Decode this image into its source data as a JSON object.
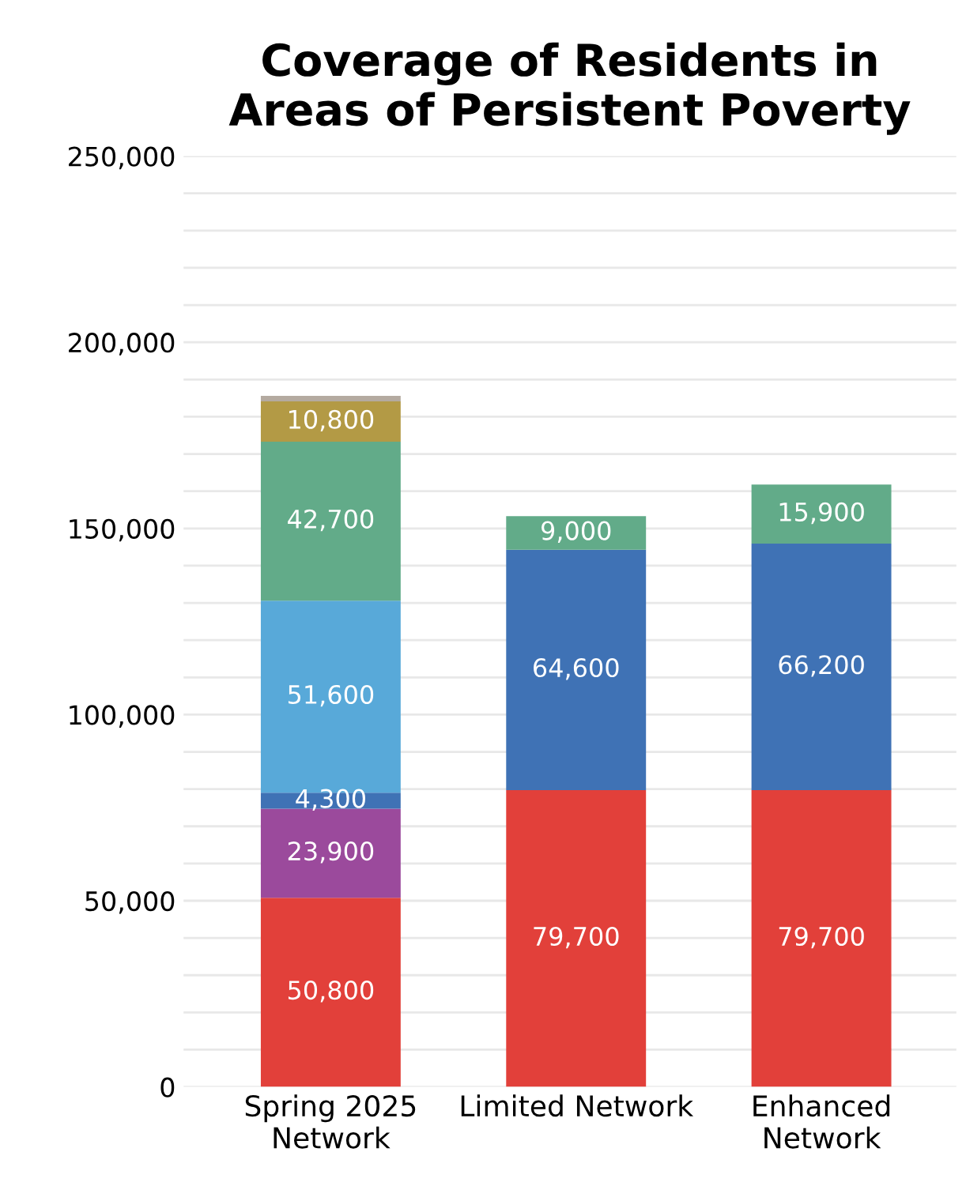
{
  "chart_data": {
    "type": "bar",
    "stacked": true,
    "title": "Coverage of Residents in\nAreas of Persistent Poverty",
    "categories": [
      "Spring 2025\nNetwork",
      "Limited Network",
      "Enhanced\nNetwork"
    ],
    "series": [
      {
        "color": "#e2403a",
        "values": [
          50800,
          79700,
          79700
        ],
        "value_labels": [
          "50,800",
          "79,700",
          "79,700"
        ]
      },
      {
        "color": "#9b4a9c",
        "values": [
          23900,
          null,
          null
        ],
        "value_labels": [
          "23,900",
          null,
          null
        ]
      },
      {
        "color": "#3f72b5",
        "values": [
          4300,
          64600,
          66200
        ],
        "value_labels": [
          "4,300",
          "64,600",
          "66,200"
        ]
      },
      {
        "color": "#58a9d9",
        "values": [
          51600,
          null,
          null
        ],
        "value_labels": [
          "51,600",
          null,
          null
        ]
      },
      {
        "color": "#62ab89",
        "values": [
          42700,
          9000,
          15900
        ],
        "value_labels": [
          "42,700",
          "9,000",
          "15,900"
        ]
      },
      {
        "color": "#b39a45",
        "values": [
          10800,
          null,
          null
        ],
        "value_labels": [
          "10,800",
          null,
          null
        ]
      },
      {
        "color": "#b4aaa0",
        "values": [
          1500,
          null,
          null
        ],
        "value_labels": [
          null,
          null,
          null
        ]
      }
    ],
    "ylim": [
      0,
      250000
    ],
    "yticks": [
      {
        "value": 0,
        "label": "0"
      },
      {
        "value": 10000,
        "label": null
      },
      {
        "value": 20000,
        "label": null
      },
      {
        "value": 30000,
        "label": null
      },
      {
        "value": 40000,
        "label": null
      },
      {
        "value": 50000,
        "label": "50,000"
      },
      {
        "value": 60000,
        "label": null
      },
      {
        "value": 70000,
        "label": null
      },
      {
        "value": 80000,
        "label": null
      },
      {
        "value": 90000,
        "label": null
      },
      {
        "value": 100000,
        "label": "100,000"
      },
      {
        "value": 110000,
        "label": null
      },
      {
        "value": 120000,
        "label": null
      },
      {
        "value": 130000,
        "label": null
      },
      {
        "value": 140000,
        "label": null
      },
      {
        "value": 150000,
        "label": "150,000"
      },
      {
        "value": 160000,
        "label": null
      },
      {
        "value": 170000,
        "label": null
      },
      {
        "value": 180000,
        "label": null
      },
      {
        "value": 190000,
        "label": null
      },
      {
        "value": 200000,
        "label": "200,000"
      },
      {
        "value": 210000,
        "label": null
      },
      {
        "value": 220000,
        "label": null
      },
      {
        "value": 230000,
        "label": null
      },
      {
        "value": 240000,
        "label": null
      },
      {
        "value": 250000,
        "label": "250,000"
      }
    ],
    "grid": "y",
    "legend": false
  }
}
